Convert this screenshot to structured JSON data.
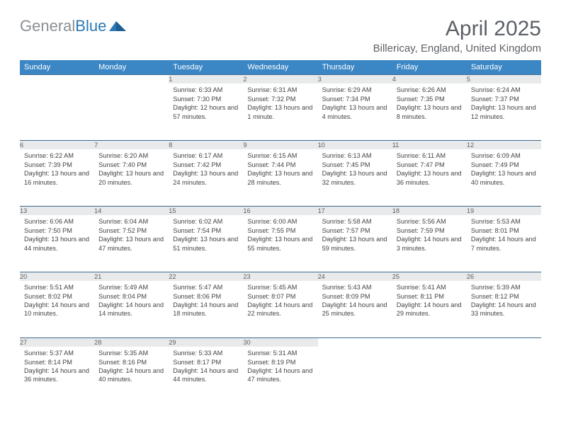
{
  "logo": {
    "part1": "General",
    "part2": "Blue"
  },
  "title": "April 2025",
  "location": "Billericay, England, United Kingdom",
  "colors": {
    "header_bg": "#3b86c4",
    "header_text": "#ffffff",
    "daynum_bg": "#e9eaeb",
    "row_divider": "#3b6a8f",
    "body_text": "#444444",
    "title_text": "#5d6166"
  },
  "typography": {
    "title_fontsize": 30,
    "location_fontsize": 15,
    "weekday_fontsize": 11,
    "daynum_fontsize": 11,
    "body_fontsize": 9.2
  },
  "weekdays": [
    "Sunday",
    "Monday",
    "Tuesday",
    "Wednesday",
    "Thursday",
    "Friday",
    "Saturday"
  ],
  "weeks": [
    [
      null,
      null,
      {
        "n": "1",
        "sunrise": "Sunrise: 6:33 AM",
        "sunset": "Sunset: 7:30 PM",
        "daylight": "Daylight: 12 hours and 57 minutes."
      },
      {
        "n": "2",
        "sunrise": "Sunrise: 6:31 AM",
        "sunset": "Sunset: 7:32 PM",
        "daylight": "Daylight: 13 hours and 1 minute."
      },
      {
        "n": "3",
        "sunrise": "Sunrise: 6:29 AM",
        "sunset": "Sunset: 7:34 PM",
        "daylight": "Daylight: 13 hours and 4 minutes."
      },
      {
        "n": "4",
        "sunrise": "Sunrise: 6:26 AM",
        "sunset": "Sunset: 7:35 PM",
        "daylight": "Daylight: 13 hours and 8 minutes."
      },
      {
        "n": "5",
        "sunrise": "Sunrise: 6:24 AM",
        "sunset": "Sunset: 7:37 PM",
        "daylight": "Daylight: 13 hours and 12 minutes."
      }
    ],
    [
      {
        "n": "6",
        "sunrise": "Sunrise: 6:22 AM",
        "sunset": "Sunset: 7:39 PM",
        "daylight": "Daylight: 13 hours and 16 minutes."
      },
      {
        "n": "7",
        "sunrise": "Sunrise: 6:20 AM",
        "sunset": "Sunset: 7:40 PM",
        "daylight": "Daylight: 13 hours and 20 minutes."
      },
      {
        "n": "8",
        "sunrise": "Sunrise: 6:17 AM",
        "sunset": "Sunset: 7:42 PM",
        "daylight": "Daylight: 13 hours and 24 minutes."
      },
      {
        "n": "9",
        "sunrise": "Sunrise: 6:15 AM",
        "sunset": "Sunset: 7:44 PM",
        "daylight": "Daylight: 13 hours and 28 minutes."
      },
      {
        "n": "10",
        "sunrise": "Sunrise: 6:13 AM",
        "sunset": "Sunset: 7:45 PM",
        "daylight": "Daylight: 13 hours and 32 minutes."
      },
      {
        "n": "11",
        "sunrise": "Sunrise: 6:11 AM",
        "sunset": "Sunset: 7:47 PM",
        "daylight": "Daylight: 13 hours and 36 minutes."
      },
      {
        "n": "12",
        "sunrise": "Sunrise: 6:09 AM",
        "sunset": "Sunset: 7:49 PM",
        "daylight": "Daylight: 13 hours and 40 minutes."
      }
    ],
    [
      {
        "n": "13",
        "sunrise": "Sunrise: 6:06 AM",
        "sunset": "Sunset: 7:50 PM",
        "daylight": "Daylight: 13 hours and 44 minutes."
      },
      {
        "n": "14",
        "sunrise": "Sunrise: 6:04 AM",
        "sunset": "Sunset: 7:52 PM",
        "daylight": "Daylight: 13 hours and 47 minutes."
      },
      {
        "n": "15",
        "sunrise": "Sunrise: 6:02 AM",
        "sunset": "Sunset: 7:54 PM",
        "daylight": "Daylight: 13 hours and 51 minutes."
      },
      {
        "n": "16",
        "sunrise": "Sunrise: 6:00 AM",
        "sunset": "Sunset: 7:55 PM",
        "daylight": "Daylight: 13 hours and 55 minutes."
      },
      {
        "n": "17",
        "sunrise": "Sunrise: 5:58 AM",
        "sunset": "Sunset: 7:57 PM",
        "daylight": "Daylight: 13 hours and 59 minutes."
      },
      {
        "n": "18",
        "sunrise": "Sunrise: 5:56 AM",
        "sunset": "Sunset: 7:59 PM",
        "daylight": "Daylight: 14 hours and 3 minutes."
      },
      {
        "n": "19",
        "sunrise": "Sunrise: 5:53 AM",
        "sunset": "Sunset: 8:01 PM",
        "daylight": "Daylight: 14 hours and 7 minutes."
      }
    ],
    [
      {
        "n": "20",
        "sunrise": "Sunrise: 5:51 AM",
        "sunset": "Sunset: 8:02 PM",
        "daylight": "Daylight: 14 hours and 10 minutes."
      },
      {
        "n": "21",
        "sunrise": "Sunrise: 5:49 AM",
        "sunset": "Sunset: 8:04 PM",
        "daylight": "Daylight: 14 hours and 14 minutes."
      },
      {
        "n": "22",
        "sunrise": "Sunrise: 5:47 AM",
        "sunset": "Sunset: 8:06 PM",
        "daylight": "Daylight: 14 hours and 18 minutes."
      },
      {
        "n": "23",
        "sunrise": "Sunrise: 5:45 AM",
        "sunset": "Sunset: 8:07 PM",
        "daylight": "Daylight: 14 hours and 22 minutes."
      },
      {
        "n": "24",
        "sunrise": "Sunrise: 5:43 AM",
        "sunset": "Sunset: 8:09 PM",
        "daylight": "Daylight: 14 hours and 25 minutes."
      },
      {
        "n": "25",
        "sunrise": "Sunrise: 5:41 AM",
        "sunset": "Sunset: 8:11 PM",
        "daylight": "Daylight: 14 hours and 29 minutes."
      },
      {
        "n": "26",
        "sunrise": "Sunrise: 5:39 AM",
        "sunset": "Sunset: 8:12 PM",
        "daylight": "Daylight: 14 hours and 33 minutes."
      }
    ],
    [
      {
        "n": "27",
        "sunrise": "Sunrise: 5:37 AM",
        "sunset": "Sunset: 8:14 PM",
        "daylight": "Daylight: 14 hours and 36 minutes."
      },
      {
        "n": "28",
        "sunrise": "Sunrise: 5:35 AM",
        "sunset": "Sunset: 8:16 PM",
        "daylight": "Daylight: 14 hours and 40 minutes."
      },
      {
        "n": "29",
        "sunrise": "Sunrise: 5:33 AM",
        "sunset": "Sunset: 8:17 PM",
        "daylight": "Daylight: 14 hours and 44 minutes."
      },
      {
        "n": "30",
        "sunrise": "Sunrise: 5:31 AM",
        "sunset": "Sunset: 8:19 PM",
        "daylight": "Daylight: 14 hours and 47 minutes."
      },
      null,
      null,
      null
    ]
  ]
}
